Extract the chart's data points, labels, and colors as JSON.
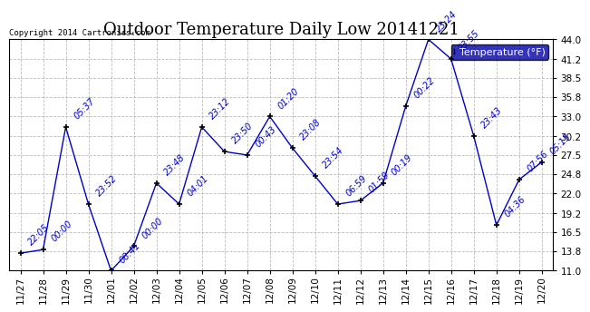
{
  "title": "Outdoor Temperature Daily Low 20141221",
  "copyright": "Copyright 2014 Cartronics.com",
  "legend_label": "Temperature (°F)",
  "x_labels": [
    "11/27",
    "11/28",
    "11/29",
    "11/30",
    "12/01",
    "12/02",
    "12/03",
    "12/04",
    "12/05",
    "12/06",
    "12/07",
    "12/08",
    "12/09",
    "12/10",
    "12/11",
    "12/12",
    "12/13",
    "12/14",
    "12/15",
    "12/16",
    "12/17",
    "12/18",
    "12/19",
    "12/20"
  ],
  "y_values": [
    13.5,
    14.0,
    31.5,
    20.5,
    11.0,
    14.5,
    23.5,
    20.5,
    31.5,
    28.0,
    27.5,
    33.0,
    28.5,
    24.5,
    20.5,
    21.0,
    23.5,
    34.5,
    44.0,
    41.2,
    30.2,
    17.5,
    24.0,
    26.5
  ],
  "point_labels": [
    "22:05",
    "00:00",
    "05:37",
    "23:52",
    "08:41",
    "00:00",
    "23:48",
    "04:01",
    "23:12",
    "23:50",
    "00:43",
    "01:20",
    "23:08",
    "23:54",
    "06:59",
    "01:59",
    "00:19",
    "00:22",
    "23:24",
    "23:55",
    "23:43",
    "04:36",
    "07:56",
    "05:15"
  ],
  "ylim": [
    11.0,
    44.0
  ],
  "y_ticks": [
    11.0,
    13.8,
    16.5,
    19.2,
    22.0,
    24.8,
    27.5,
    30.2,
    33.0,
    35.8,
    38.5,
    41.2,
    44.0
  ],
  "line_color": "#0000cc",
  "marker_color": "#000000",
  "bg_color": "#ffffff",
  "grid_color": "#aaaaaa",
  "title_fontsize": 13,
  "anno_fontsize": 7,
  "tick_fontsize": 7.5,
  "legend_bg": "#0000aa",
  "legend_text": "#ffffff"
}
